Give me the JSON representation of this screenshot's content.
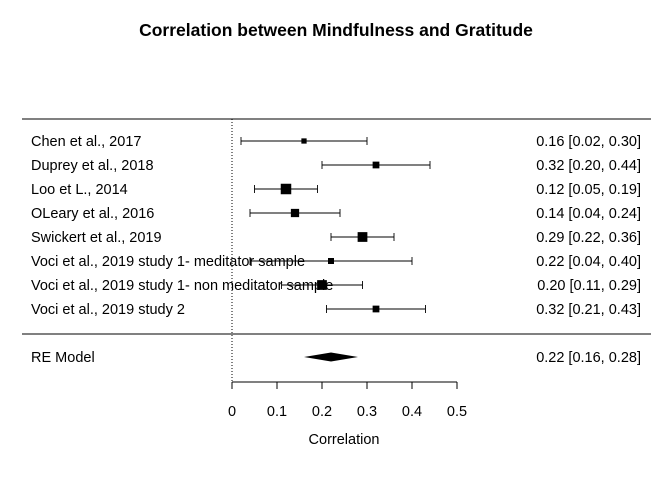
{
  "chart_data": {
    "type": "forest",
    "title": "Correlation between Mindfulness and Gratitude",
    "xlabel": "Correlation",
    "xlim": [
      0,
      0.5
    ],
    "xticks": [
      "0",
      "0.1",
      "0.2",
      "0.3",
      "0.4",
      "0.5"
    ],
    "reference_line": 0,
    "studies": [
      {
        "label": "Chen et al., 2017",
        "estimate": 0.16,
        "ci": [
          0.02,
          0.3
        ],
        "ci_text": "0.16 [0.02, 0.30]",
        "weight": 0.7
      },
      {
        "label": "Duprey et al., 2018",
        "estimate": 0.32,
        "ci": [
          0.2,
          0.44
        ],
        "ci_text": "0.32 [0.20, 0.44]",
        "weight": 0.9
      },
      {
        "label": "Loo et L., 2014",
        "estimate": 0.12,
        "ci": [
          0.05,
          0.19
        ],
        "ci_text": "0.12 [0.05, 0.19]",
        "weight": 1.4
      },
      {
        "label": "OLeary et al., 2016",
        "estimate": 0.14,
        "ci": [
          0.04,
          0.24
        ],
        "ci_text": "0.14 [0.04, 0.24]",
        "weight": 1.1
      },
      {
        "label": "Swickert et al., 2019",
        "estimate": 0.29,
        "ci": [
          0.22,
          0.36
        ],
        "ci_text": "0.29 [0.22, 0.36]",
        "weight": 1.3
      },
      {
        "label": "Voci et al., 2019  study 1- meditator sample",
        "estimate": 0.22,
        "ci": [
          0.04,
          0.4
        ],
        "ci_text": "0.22 [0.04, 0.40]",
        "weight": 0.8
      },
      {
        "label": "Voci et al., 2019  study 1- non meditator sample",
        "estimate": 0.2,
        "ci": [
          0.11,
          0.29
        ],
        "ci_text": "0.20 [0.11, 0.29]",
        "weight": 1.3
      },
      {
        "label": "Voci et al., 2019  study 2",
        "estimate": 0.32,
        "ci": [
          0.21,
          0.43
        ],
        "ci_text": "0.32 [0.21, 0.43]",
        "weight": 0.9
      }
    ],
    "summary": {
      "label": "RE Model",
      "estimate": 0.22,
      "ci": [
        0.16,
        0.28
      ],
      "ci_text": "0.22 [0.16, 0.28]"
    }
  }
}
